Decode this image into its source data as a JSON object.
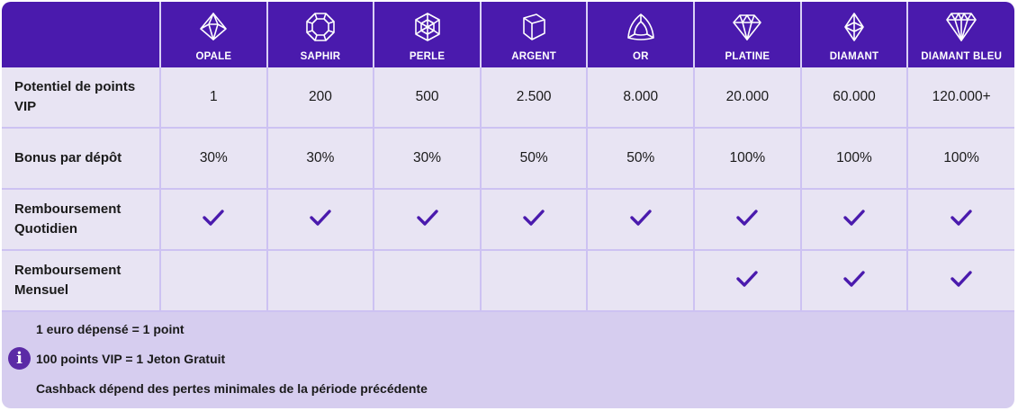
{
  "colors": {
    "header_bg": "#4a1aad",
    "cell_bg": "#e8e4f3",
    "grid": "#cdc2f2",
    "footer_bg": "#d6cdef",
    "check": "#4a1aad",
    "info_icon": "#5b2aa6"
  },
  "tiers": [
    {
      "name": "OPALE",
      "icon": "opal-gem-icon"
    },
    {
      "name": "SAPHIR",
      "icon": "sapphire-gem-icon"
    },
    {
      "name": "PERLE",
      "icon": "pearl-gem-icon"
    },
    {
      "name": "ARGENT",
      "icon": "silver-cube-icon"
    },
    {
      "name": "OR",
      "icon": "gold-trillion-icon"
    },
    {
      "name": "PLATINE",
      "icon": "platinum-diamond-icon"
    },
    {
      "name": "DIAMANT",
      "icon": "diamond-icon"
    },
    {
      "name": "DIAMANT BLEU",
      "icon": "blue-diamond-icon"
    }
  ],
  "rows": [
    {
      "label": "Potentiel de points VIP",
      "type": "text",
      "values": [
        "1",
        "200",
        "500",
        "2.500",
        "8.000",
        "20.000",
        "60.000",
        "120.000+"
      ]
    },
    {
      "label": "Bonus par dépôt",
      "type": "text",
      "values": [
        "30%",
        "30%",
        "30%",
        "50%",
        "50%",
        "100%",
        "100%",
        "100%"
      ]
    },
    {
      "label": "Remboursement Quotidien",
      "type": "check",
      "values": [
        true,
        true,
        true,
        true,
        true,
        true,
        true,
        true
      ]
    },
    {
      "label": "Remboursement Mensuel",
      "type": "check",
      "values": [
        false,
        false,
        false,
        false,
        false,
        true,
        true,
        true
      ]
    }
  ],
  "footer": {
    "info_icon": "info-icon",
    "info_glyph": "i",
    "lines": [
      "1 euro dépensé = 1 point",
      "100 points VIP = 1 Jeton Gratuit",
      "Cashback dépend des pertes minimales de la période précédente"
    ]
  }
}
